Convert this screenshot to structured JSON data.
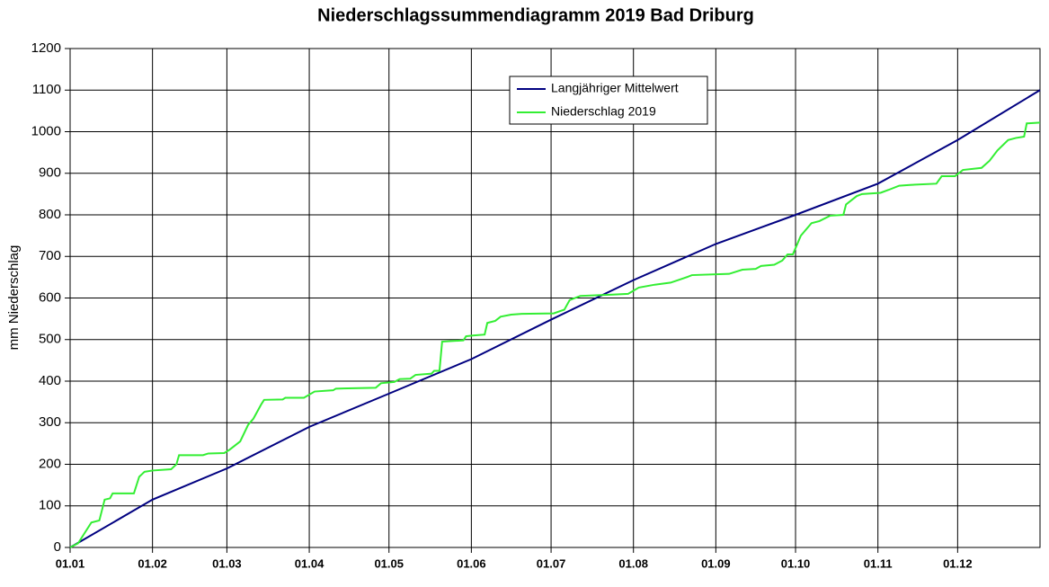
{
  "chart_data": {
    "type": "line",
    "title": "Niederschlagssummendiagramm  2019 Bad Driburg",
    "y_label": "mm Niederschlag",
    "xlim": [
      0,
      365
    ],
    "xticks": [
      {
        "value": 0,
        "label": "01.01"
      },
      {
        "value": 31,
        "label": "01.02"
      },
      {
        "value": 59,
        "label": "01.03"
      },
      {
        "value": 90,
        "label": "01.04"
      },
      {
        "value": 120,
        "label": "01.05"
      },
      {
        "value": 151,
        "label": "01.06"
      },
      {
        "value": 181,
        "label": "01.07"
      },
      {
        "value": 212,
        "label": "01.08"
      },
      {
        "value": 243,
        "label": "01.09"
      },
      {
        "value": 273,
        "label": "01.10"
      },
      {
        "value": 304,
        "label": "01.11"
      },
      {
        "value": 334,
        "label": "01.12"
      }
    ],
    "ylim": [
      0,
      1200
    ],
    "yticks": [
      0,
      100,
      200,
      300,
      400,
      500,
      600,
      700,
      800,
      900,
      1000,
      1100,
      1200
    ],
    "grid": true,
    "legend": "top",
    "series": [
      {
        "name": "Langjähriger Mittelwert",
        "color": "#000080",
        "x": [
          0,
          31,
          59,
          90,
          120,
          151,
          181,
          212,
          243,
          273,
          304,
          334,
          365
        ],
        "values": [
          0,
          115,
          190,
          290,
          370,
          453,
          548,
          643,
          730,
          800,
          875,
          980,
          1100
        ]
      },
      {
        "name": "Niederschlag 2019",
        "color": "#33ee33",
        "x": [
          0,
          3,
          8,
          11,
          13,
          15,
          16,
          24,
          26,
          28,
          31,
          38,
          40,
          41,
          50,
          52,
          58,
          60,
          62,
          64,
          67,
          69,
          72,
          73,
          80,
          81,
          88,
          92,
          99,
          100,
          115,
          117,
          122,
          124,
          128,
          130,
          136,
          137,
          139,
          140,
          148,
          149,
          152,
          156,
          157,
          160,
          162,
          166,
          170,
          182,
          186,
          188,
          192,
          204,
          210,
          214,
          220,
          226,
          232,
          234,
          248,
          250,
          253,
          258,
          260,
          265,
          268,
          270,
          272,
          275,
          279,
          282,
          286,
          291,
          292,
          296,
          298,
          305,
          308,
          312,
          316,
          326,
          328,
          333,
          336,
          343,
          346,
          349,
          353,
          356,
          359,
          360,
          365
        ],
        "values": [
          0,
          10,
          60,
          65,
          115,
          118,
          130,
          130,
          170,
          182,
          185,
          188,
          200,
          222,
          222,
          226,
          227,
          235,
          245,
          255,
          295,
          310,
          345,
          355,
          356,
          360,
          360,
          375,
          378,
          382,
          384,
          395,
          398,
          405,
          406,
          415,
          418,
          425,
          425,
          495,
          498,
          508,
          510,
          512,
          540,
          545,
          555,
          560,
          562,
          563,
          572,
          595,
          605,
          608,
          610,
          625,
          632,
          637,
          650,
          655,
          658,
          662,
          668,
          670,
          677,
          680,
          690,
          705,
          705,
          750,
          780,
          785,
          798,
          800,
          825,
          845,
          850,
          853,
          860,
          870,
          872,
          875,
          893,
          893,
          908,
          913,
          930,
          955,
          980,
          985,
          988,
          1020,
          1022
        ]
      }
    ]
  }
}
